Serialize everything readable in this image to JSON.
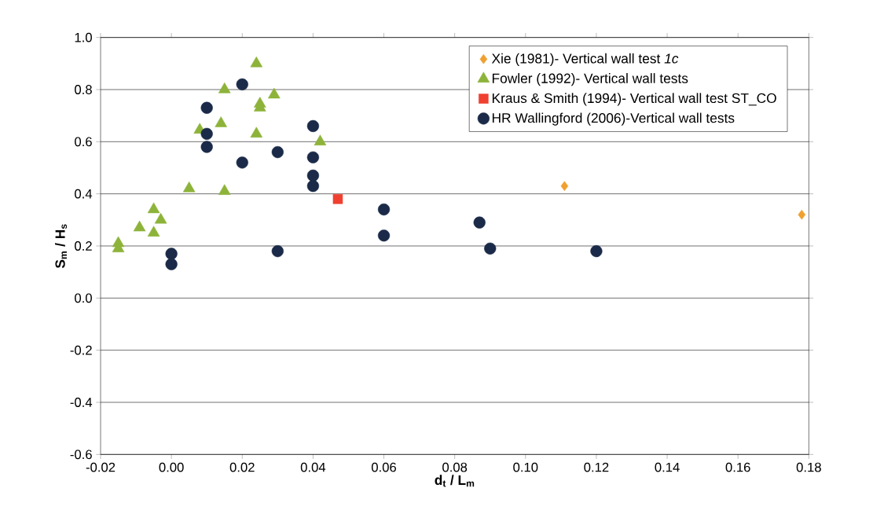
{
  "chart_data": {
    "type": "scatter",
    "xlabel": "d$_{t}$ / L$_{m}$",
    "ylabel": "S$_{m}$ / H$_{s}$",
    "xlim": [
      -0.02,
      0.18
    ],
    "ylim": [
      -0.6,
      1.0
    ],
    "xticks": [
      {
        "value": -0.02,
        "label": "-0.02"
      },
      {
        "value": 0.0,
        "label": "0.00"
      },
      {
        "value": 0.02,
        "label": "0.02"
      },
      {
        "value": 0.04,
        "label": "0.04"
      },
      {
        "value": 0.06,
        "label": "0.06"
      },
      {
        "value": 0.08,
        "label": "0.08"
      },
      {
        "value": 0.1,
        "label": "0.10"
      },
      {
        "value": 0.12,
        "label": "0.12"
      },
      {
        "value": 0.14,
        "label": "0.14"
      },
      {
        "value": 0.16,
        "label": "0.16"
      },
      {
        "value": 0.18,
        "label": "0.18"
      }
    ],
    "yticks": [
      {
        "value": -0.6,
        "label": "-0.6"
      },
      {
        "value": -0.4,
        "label": "-0.4"
      },
      {
        "value": -0.2,
        "label": "-0.2"
      },
      {
        "value": 0.0,
        "label": "0.0"
      },
      {
        "value": 0.2,
        "label": "0.2"
      },
      {
        "value": 0.4,
        "label": "0.4"
      },
      {
        "value": 0.6,
        "label": "0.6"
      },
      {
        "value": 0.8,
        "label": "0.8"
      },
      {
        "value": 1.0,
        "label": "1.0"
      }
    ],
    "grid": "y",
    "legend": "top right",
    "series": [
      {
        "name": "Xie (1981)- Vertical wall test *1c*",
        "color": "#f0a030",
        "marker": "diamond",
        "x": [
          0.111,
          0.178
        ],
        "values": [
          0.43,
          0.32
        ]
      },
      {
        "name": "Fowler (1992)- Vertical wall tests",
        "color": "#8db33a",
        "marker": "triangle",
        "x": [
          0.024,
          0.015,
          0.029,
          0.025,
          0.025,
          0.014,
          0.008,
          0.024,
          0.042,
          0.005,
          0.015,
          -0.005,
          -0.003,
          -0.009,
          -0.005,
          -0.015,
          -0.015
        ],
        "values": [
          0.9,
          0.8,
          0.78,
          0.745,
          0.73,
          0.67,
          0.645,
          0.63,
          0.6,
          0.42,
          0.41,
          0.34,
          0.3,
          0.27,
          0.25,
          0.21,
          0.19
        ]
      },
      {
        "name": "Kraus & Smith (1994)- Vertical wall test ST_CO",
        "color": "#f04030",
        "marker": "square",
        "x": [
          0.047
        ],
        "values": [
          0.38
        ]
      },
      {
        "name": "HR Wallingford (2006)-Vertical wall tests",
        "color": "#1a2a48",
        "marker": "circle",
        "x": [
          0.0,
          0.0,
          0.01,
          0.01,
          0.01,
          0.02,
          0.02,
          0.03,
          0.03,
          0.04,
          0.04,
          0.04,
          0.04,
          0.06,
          0.06,
          0.087,
          0.09,
          0.12
        ],
        "values": [
          0.17,
          0.13,
          0.73,
          0.63,
          0.58,
          0.82,
          0.52,
          0.56,
          0.18,
          0.66,
          0.54,
          0.47,
          0.43,
          0.34,
          0.24,
          0.29,
          0.19,
          0.18
        ]
      }
    ]
  }
}
